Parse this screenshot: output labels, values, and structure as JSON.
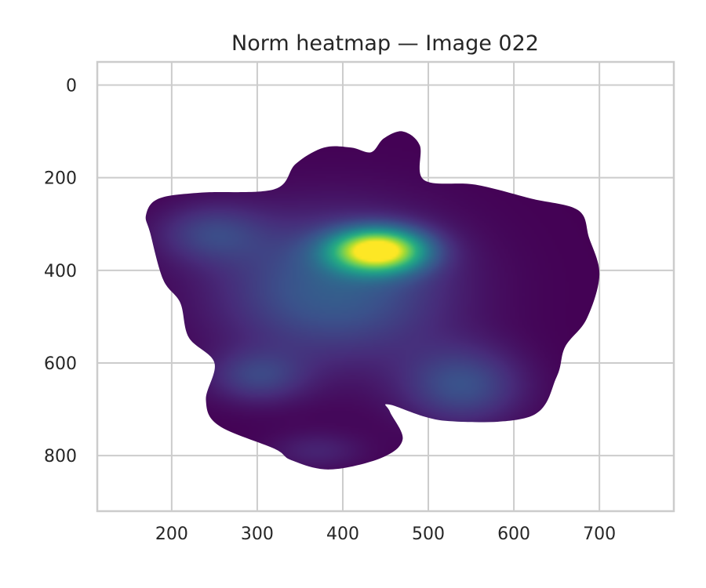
{
  "chart_data": {
    "type": "heatmap",
    "title": "Norm heatmap — Image 022",
    "xlabel": "",
    "ylabel": "",
    "xlim": [
      113,
      787
    ],
    "ylim": [
      920,
      -50
    ],
    "y_inverted": true,
    "grid": true,
    "colormap": "viridis",
    "x_ticks": [
      200,
      300,
      400,
      500,
      600,
      700
    ],
    "y_ticks": [
      0,
      200,
      400,
      600,
      800
    ],
    "background": "#ffffff",
    "grid_color": "#cccccc",
    "outline": [
      [
        175,
        320
      ],
      [
        170,
        280
      ],
      [
        185,
        245
      ],
      [
        235,
        232
      ],
      [
        320,
        225
      ],
      [
        345,
        170
      ],
      [
        378,
        135
      ],
      [
        410,
        135
      ],
      [
        433,
        145
      ],
      [
        448,
        115
      ],
      [
        470,
        100
      ],
      [
        490,
        130
      ],
      [
        495,
        205
      ],
      [
        555,
        215
      ],
      [
        620,
        245
      ],
      [
        675,
        270
      ],
      [
        688,
        330
      ],
      [
        700,
        410
      ],
      [
        685,
        505
      ],
      [
        660,
        565
      ],
      [
        650,
        630
      ],
      [
        620,
        715
      ],
      [
        520,
        725
      ],
      [
        455,
        690
      ],
      [
        455,
        705
      ],
      [
        470,
        765
      ],
      [
        445,
        805
      ],
      [
        385,
        830
      ],
      [
        340,
        810
      ],
      [
        320,
        785
      ],
      [
        255,
        735
      ],
      [
        240,
        680
      ],
      [
        250,
        600
      ],
      [
        220,
        545
      ],
      [
        210,
        470
      ],
      [
        190,
        420
      ]
    ],
    "blobs": [
      {
        "x": 441,
        "y": 357,
        "sx": 38,
        "sy": 32,
        "w": 1.0
      },
      {
        "x": 390,
        "y": 440,
        "sx": 95,
        "sy": 110,
        "w": 0.3
      },
      {
        "x": 245,
        "y": 320,
        "sx": 45,
        "sy": 45,
        "w": 0.18
      },
      {
        "x": 300,
        "y": 630,
        "sx": 40,
        "sy": 40,
        "w": 0.18
      },
      {
        "x": 540,
        "y": 650,
        "sx": 50,
        "sy": 60,
        "w": 0.24
      },
      {
        "x": 370,
        "y": 790,
        "sx": 40,
        "sy": 30,
        "w": 0.1
      }
    ]
  }
}
